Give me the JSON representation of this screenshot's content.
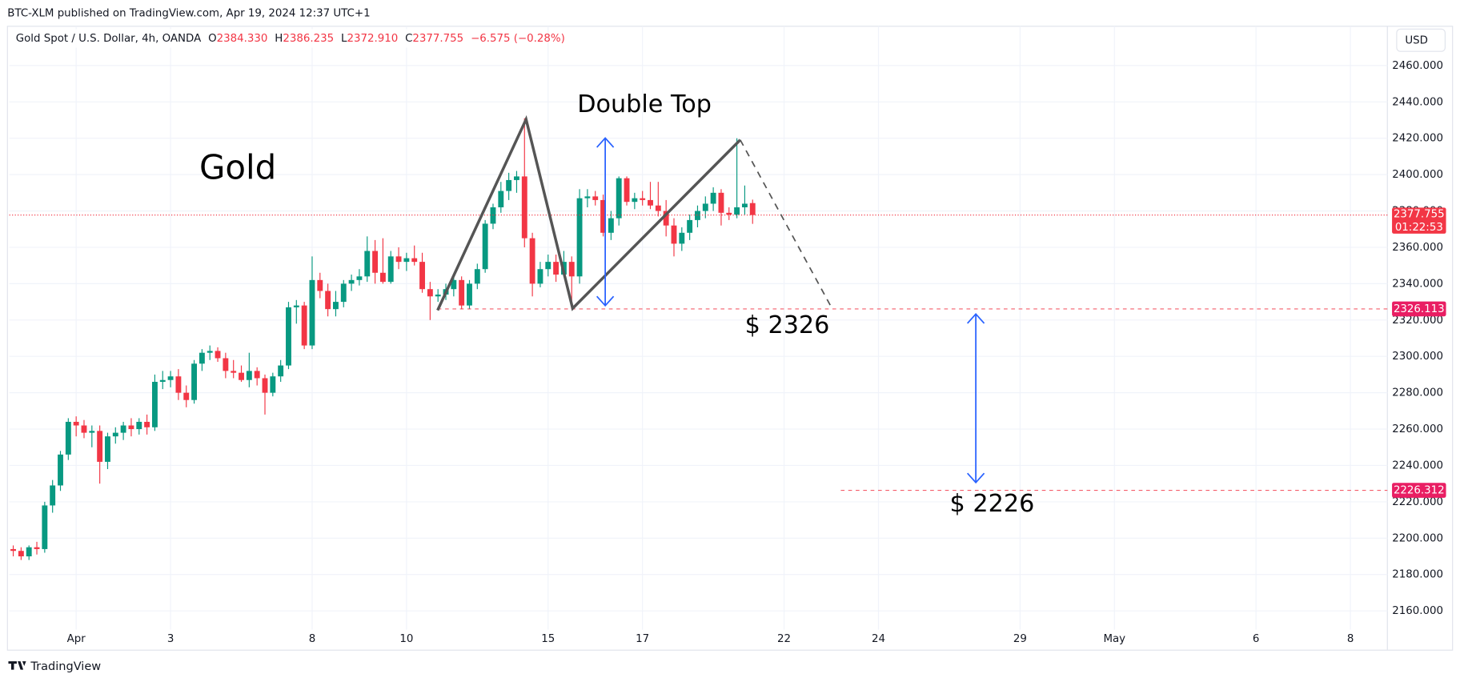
{
  "header": {
    "publisher": "BTC-XLM published on TradingView.com, Apr 19, 2024 12:37 UTC+1",
    "footer": "TradingView"
  },
  "chart_data": {
    "type": "candlestick",
    "symbol": "Gold Spot / U.S. Dollar, 4h, OANDA",
    "legend": [
      {
        "key": "O",
        "value": "2384.330"
      },
      {
        "key": "H",
        "value": "2386.235"
      },
      {
        "key": "L",
        "value": "2372.910"
      },
      {
        "key": "C",
        "value": "2377.755"
      }
    ],
    "change": "−6.575 (−0.28%)",
    "currency": "USD",
    "annotations": [
      "Gold",
      "Double Top",
      "$ 2326",
      "$ 2226"
    ],
    "up_color": "#089981",
    "down_color": "#f23645",
    "open": [
      2194,
      2193,
      2190,
      2195,
      2194,
      2218,
      2229,
      2246,
      2264,
      2262,
      2258,
      2259,
      2242,
      2256,
      2258,
      2262,
      2260,
      2264,
      2261,
      2286,
      2287,
      2289,
      2280,
      2276,
      2296,
      2302,
      2303,
      2299,
      2292,
      2291,
      2287,
      2292,
      2288,
      2280,
      2289,
      2295,
      2327,
      2328,
      2306,
      2342,
      2336,
      2326,
      2330,
      2340,
      2342,
      2344,
      2358,
      2346,
      2341,
      2355,
      2352,
      2354,
      2352,
      2337,
      2333,
      2334,
      2337,
      2342,
      2328,
      2340,
      2348,
      2373,
      2382,
      2391,
      2397,
      2399,
      2365,
      2340,
      2348,
      2352,
      2345,
      2352,
      2344,
      2387,
      2388,
      2386,
      2368,
      2376,
      2398,
      2385,
      2387,
      2386,
      2383,
      2380,
      2372,
      2362,
      2368,
      2375,
      2380,
      2384,
      2390,
      2379,
      2378,
      2382,
      2384.33
    ],
    "high": [
      2196,
      2195,
      2196,
      2198,
      2220,
      2232,
      2248,
      2266,
      2267,
      2265,
      2262,
      2262,
      2258,
      2261,
      2264,
      2266,
      2266,
      2268,
      2290,
      2292,
      2292,
      2293,
      2284,
      2298,
      2304,
      2306,
      2305,
      2302,
      2298,
      2295,
      2302,
      2294,
      2290,
      2291,
      2298,
      2330,
      2331,
      2330,
      2355,
      2346,
      2340,
      2336,
      2342,
      2345,
      2348,
      2366,
      2364,
      2365,
      2358,
      2360,
      2357,
      2361,
      2357,
      2341,
      2337,
      2340,
      2345,
      2344,
      2342,
      2351,
      2375,
      2384,
      2396,
      2401,
      2402,
      2431,
      2368,
      2352,
      2356,
      2356,
      2358,
      2355,
      2392,
      2392,
      2391,
      2389,
      2380,
      2399,
      2399,
      2390,
      2391,
      2396,
      2396,
      2386,
      2376,
      2371,
      2378,
      2383,
      2388,
      2393,
      2392,
      2382,
      2420,
      2394,
      2386.235
    ],
    "low": [
      2190,
      2188,
      2188,
      2191,
      2192,
      2214,
      2226,
      2243,
      2256,
      2255,
      2250,
      2230,
      2238,
      2252,
      2254,
      2256,
      2257,
      2257,
      2259,
      2282,
      2283,
      2276,
      2272,
      2274,
      2292,
      2298,
      2297,
      2288,
      2288,
      2286,
      2283,
      2284,
      2268,
      2278,
      2286,
      2293,
      2318,
      2304,
      2304,
      2332,
      2322,
      2322,
      2327,
      2336,
      2339,
      2341,
      2340,
      2340,
      2340,
      2348,
      2347,
      2350,
      2335,
      2320,
      2330,
      2331,
      2333,
      2326,
      2326,
      2337,
      2346,
      2370,
      2379,
      2386,
      2390,
      2360,
      2333,
      2338,
      2344,
      2341,
      2344,
      2326,
      2340,
      2382,
      2383,
      2366,
      2364,
      2372,
      2383,
      2381,
      2383,
      2381,
      2377,
      2366,
      2355,
      2358,
      2364,
      2371,
      2376,
      2380,
      2372,
      2375,
      2376,
      2378,
      2372.91
    ],
    "close": [
      2193,
      2190,
      2195,
      2194,
      2218,
      2229,
      2246,
      2264,
      2262,
      2258,
      2259,
      2242,
      2256,
      2258,
      2262,
      2260,
      2264,
      2261,
      2286,
      2287,
      2289,
      2280,
      2276,
      2296,
      2302,
      2303,
      2299,
      2292,
      2291,
      2287,
      2292,
      2288,
      2280,
      2289,
      2295,
      2327,
      2328,
      2306,
      2342,
      2336,
      2326,
      2330,
      2340,
      2342,
      2344,
      2358,
      2346,
      2341,
      2355,
      2352,
      2354,
      2352,
      2337,
      2333,
      2334,
      2337,
      2342,
      2328,
      2340,
      2348,
      2373,
      2382,
      2391,
      2397,
      2399,
      2365,
      2340,
      2348,
      2352,
      2345,
      2352,
      2344,
      2387,
      2388,
      2386,
      2368,
      2376,
      2398,
      2385,
      2387,
      2386,
      2383,
      2380,
      2372,
      2362,
      2368,
      2375,
      2380,
      2384,
      2390,
      2379,
      2378,
      2382,
      2384,
      2377.755
    ],
    "xlim": [
      -0.5,
      174.7
    ],
    "ylim": [
      2138.4,
      2481.6
    ],
    "xticks": [
      {
        "value": 8,
        "label": "Apr"
      },
      {
        "value": 20,
        "label": "3"
      },
      {
        "value": 38,
        "label": "8"
      },
      {
        "value": 50,
        "label": "10"
      },
      {
        "value": 68,
        "label": "15"
      },
      {
        "value": 80,
        "label": "17"
      },
      {
        "value": 98,
        "label": "22"
      },
      {
        "value": 110,
        "label": "24"
      },
      {
        "value": 128,
        "label": "29"
      },
      {
        "value": 140,
        "label": "May"
      },
      {
        "value": 158,
        "label": "6"
      },
      {
        "value": 170,
        "label": "8"
      }
    ],
    "yticks": [
      {
        "value": 2160,
        "label": "2160.000"
      },
      {
        "value": 2180,
        "label": "2180.000"
      },
      {
        "value": 2200,
        "label": "2200.000"
      },
      {
        "value": 2220,
        "label": "2220.000"
      },
      {
        "value": 2240,
        "label": "2240.000"
      },
      {
        "value": 2260,
        "label": "2260.000"
      },
      {
        "value": 2280,
        "label": "2280.000"
      },
      {
        "value": 2300,
        "label": "2300.000"
      },
      {
        "value": 2320,
        "label": "2320.000"
      },
      {
        "value": 2340,
        "label": "2340.000"
      },
      {
        "value": 2360,
        "label": "2360.000"
      },
      {
        "value": 2380,
        "label": "2380.000"
      },
      {
        "value": 2400,
        "label": "2400.000"
      },
      {
        "value": 2420,
        "label": "2420.000"
      },
      {
        "value": 2440,
        "label": "2440.000"
      },
      {
        "value": 2460,
        "label": "2460.000"
      }
    ],
    "grid": true,
    "current_price": 2377.755,
    "countdown": "01:22:53",
    "levels": [
      2326.113,
      2226.312
    ]
  }
}
